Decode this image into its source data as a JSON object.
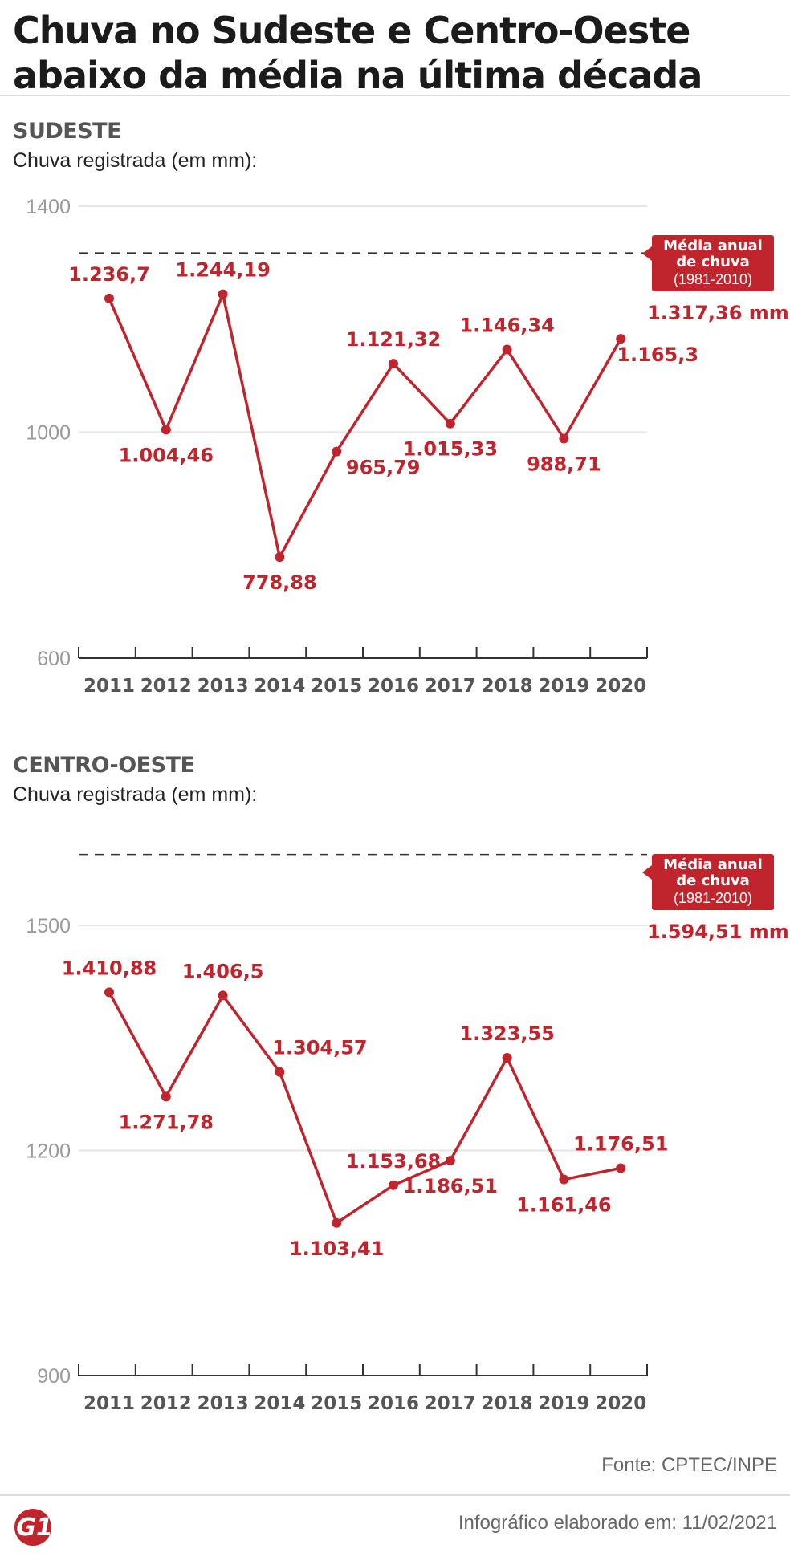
{
  "title": "Chuva no Sudeste e Centro-Oeste abaixo da média na última década",
  "avg_box": {
    "label": "Média anual de chuva",
    "period": "(1981-2010)"
  },
  "source": "Fonte: CPTEC/INPE",
  "footer": "Infográfico elaborado em: 11/02/2021",
  "logo": "G1",
  "colors": {
    "accent": "#c0242c",
    "axis": "#999999",
    "grid": "#e6e6e6"
  },
  "chart_data": [
    {
      "type": "line",
      "title": "SUDESTE",
      "ylabel": "Chuva registrada (em mm):",
      "ylim": [
        600,
        1400
      ],
      "yticks": [
        "1400",
        "1000",
        "600"
      ],
      "x": [
        "2011",
        "2012",
        "2013",
        "2014",
        "2015",
        "2016",
        "2017",
        "2018",
        "2019",
        "2020"
      ],
      "values": [
        1236.7,
        1004.46,
        1244.19,
        778.88,
        965.79,
        1121.32,
        1015.33,
        1146.34,
        988.71,
        1165.3
      ],
      "value_labels": [
        "1.236,7",
        "1.004,46",
        "1.244,19",
        "778,88",
        "965,79",
        "1.121,32",
        "1.015,33",
        "1.146,34",
        "988,71",
        "1.165,3"
      ],
      "average": 1317.36,
      "average_label": "1.317,36 mm"
    },
    {
      "type": "line",
      "title": "CENTRO-OESTE",
      "ylabel": "Chuva registrada (em mm):",
      "ylim": [
        900,
        1500
      ],
      "yticks": [
        "1500",
        "1200",
        "900"
      ],
      "x": [
        "2011",
        "2012",
        "2013",
        "2014",
        "2015",
        "2016",
        "2017",
        "2018",
        "2019",
        "2020"
      ],
      "values": [
        1410.88,
        1271.78,
        1406.5,
        1304.57,
        1103.41,
        1153.68,
        1186.51,
        1323.55,
        1161.46,
        1176.51
      ],
      "value_labels": [
        "1.410,88",
        "1.271,78",
        "1.406,5",
        "1.304,57",
        "1.103,41",
        "1.153,68",
        "1.186,51",
        "1.323,55",
        "1.161,46",
        "1.176,51"
      ],
      "average": 1594.51,
      "average_label": "1.594,51 mm"
    }
  ]
}
